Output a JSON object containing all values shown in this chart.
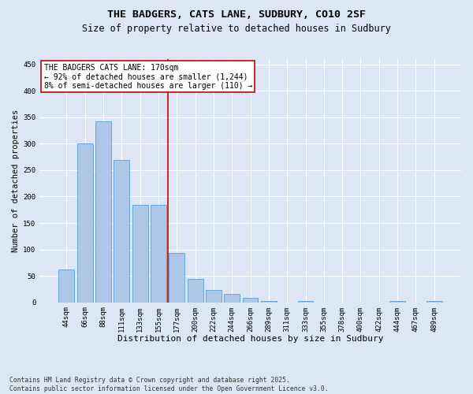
{
  "title": "THE BADGERS, CATS LANE, SUDBURY, CO10 2SF",
  "subtitle": "Size of property relative to detached houses in Sudbury",
  "xlabel": "Distribution of detached houses by size in Sudbury",
  "ylabel": "Number of detached properties",
  "categories": [
    "44sqm",
    "66sqm",
    "88sqm",
    "111sqm",
    "133sqm",
    "155sqm",
    "177sqm",
    "200sqm",
    "222sqm",
    "244sqm",
    "266sqm",
    "289sqm",
    "311sqm",
    "333sqm",
    "355sqm",
    "378sqm",
    "400sqm",
    "422sqm",
    "444sqm",
    "467sqm",
    "489sqm"
  ],
  "values": [
    62,
    300,
    342,
    270,
    185,
    185,
    93,
    45,
    23,
    16,
    8,
    2,
    0,
    2,
    0,
    0,
    0,
    0,
    2,
    0,
    2
  ],
  "bar_color": "#aec6e8",
  "bar_edge_color": "#5a9fd4",
  "vline_index": 6,
  "vline_color": "#cc0000",
  "annotation_text": "THE BADGERS CATS LANE: 170sqm\n← 92% of detached houses are smaller (1,244)\n8% of semi-detached houses are larger (110) →",
  "annotation_box_color": "#ffffff",
  "annotation_box_edge_color": "#cc0000",
  "ylim": [
    0,
    460
  ],
  "yticks": [
    0,
    50,
    100,
    150,
    200,
    250,
    300,
    350,
    400,
    450
  ],
  "background_color": "#dce6f5",
  "plot_background_color": "#dce6f5",
  "footer_line1": "Contains HM Land Registry data © Crown copyright and database right 2025.",
  "footer_line2": "Contains public sector information licensed under the Open Government Licence v3.0.",
  "title_fontsize": 9.5,
  "subtitle_fontsize": 8.5,
  "xlabel_fontsize": 8,
  "ylabel_fontsize": 7.5,
  "tick_fontsize": 6.5,
  "annotation_fontsize": 7,
  "footer_fontsize": 5.8,
  "grid_color": "#ffffff",
  "grid_linewidth": 0.8
}
